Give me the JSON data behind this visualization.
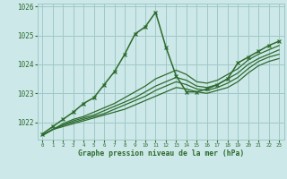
{
  "title": "Graphe pression niveau de la mer (hPa)",
  "background_color": "#cce8e8",
  "grid_color": "#a0c8c8",
  "line_color": "#2d6b2d",
  "xlim": [
    -0.5,
    23.5
  ],
  "ylim": [
    1021.4,
    1026.1
  ],
  "yticks": [
    1022,
    1023,
    1024,
    1025,
    1026
  ],
  "xticks": [
    0,
    1,
    2,
    3,
    4,
    5,
    6,
    7,
    8,
    9,
    10,
    11,
    12,
    13,
    14,
    15,
    16,
    17,
    18,
    19,
    20,
    21,
    22,
    23
  ],
  "series": [
    {
      "x": [
        0,
        1,
        2,
        3,
        4,
        5,
        6,
        7,
        8,
        9,
        10,
        11,
        12,
        13,
        14,
        15,
        16,
        17,
        18,
        19,
        20,
        21,
        22,
        23
      ],
      "y": [
        1021.55,
        1021.75,
        1021.85,
        1021.95,
        1022.05,
        1022.15,
        1022.25,
        1022.35,
        1022.45,
        1022.6,
        1022.75,
        1022.9,
        1023.05,
        1023.2,
        1023.15,
        1023.05,
        1023.0,
        1023.1,
        1023.2,
        1023.4,
        1023.7,
        1023.95,
        1024.1,
        1024.2
      ],
      "marker": null,
      "linewidth": 0.9
    },
    {
      "x": [
        0,
        1,
        2,
        3,
        4,
        5,
        6,
        7,
        8,
        9,
        10,
        11,
        12,
        13,
        14,
        15,
        16,
        17,
        18,
        19,
        20,
        21,
        22,
        23
      ],
      "y": [
        1021.55,
        1021.75,
        1021.9,
        1022.0,
        1022.1,
        1022.2,
        1022.3,
        1022.45,
        1022.6,
        1022.75,
        1022.9,
        1023.1,
        1023.25,
        1023.4,
        1023.3,
        1023.15,
        1023.1,
        1023.2,
        1023.35,
        1023.55,
        1023.85,
        1024.1,
        1024.25,
        1024.35
      ],
      "marker": null,
      "linewidth": 0.9
    },
    {
      "x": [
        0,
        1,
        2,
        3,
        4,
        5,
        6,
        7,
        8,
        9,
        10,
        11,
        12,
        13,
        14,
        15,
        16,
        17,
        18,
        19,
        20,
        21,
        22,
        23
      ],
      "y": [
        1021.55,
        1021.75,
        1021.9,
        1022.05,
        1022.15,
        1022.25,
        1022.4,
        1022.55,
        1022.7,
        1022.85,
        1023.05,
        1023.25,
        1023.4,
        1023.55,
        1023.45,
        1023.25,
        1023.2,
        1023.3,
        1023.5,
        1023.7,
        1024.0,
        1024.2,
        1024.35,
        1024.5
      ],
      "marker": null,
      "linewidth": 0.9
    },
    {
      "x": [
        0,
        1,
        2,
        3,
        4,
        5,
        6,
        7,
        8,
        9,
        10,
        11,
        12,
        13,
        14,
        15,
        16,
        17,
        18,
        19,
        20,
        21,
        22,
        23
      ],
      "y": [
        1021.55,
        1021.75,
        1021.95,
        1022.1,
        1022.2,
        1022.35,
        1022.5,
        1022.65,
        1022.85,
        1023.05,
        1023.25,
        1023.5,
        1023.65,
        1023.8,
        1023.65,
        1023.4,
        1023.35,
        1023.45,
        1023.65,
        1023.85,
        1024.15,
        1024.35,
        1024.5,
        1024.65
      ],
      "marker": null,
      "linewidth": 0.9
    },
    {
      "x": [
        0,
        1,
        2,
        3,
        4,
        5,
        6,
        7,
        8,
        9,
        10,
        11,
        12,
        13,
        14,
        15,
        16,
        17,
        18,
        19,
        20,
        21,
        22,
        23
      ],
      "y": [
        1021.6,
        1021.85,
        1022.1,
        1022.35,
        1022.65,
        1022.85,
        1023.3,
        1023.75,
        1024.35,
        1025.05,
        1025.3,
        1025.8,
        1024.6,
        1023.6,
        1023.05,
        1023.05,
        1023.15,
        1023.3,
        1023.5,
        1024.05,
        1024.25,
        1024.45,
        1024.65,
        1024.8
      ],
      "marker": "x",
      "linewidth": 1.1
    }
  ]
}
